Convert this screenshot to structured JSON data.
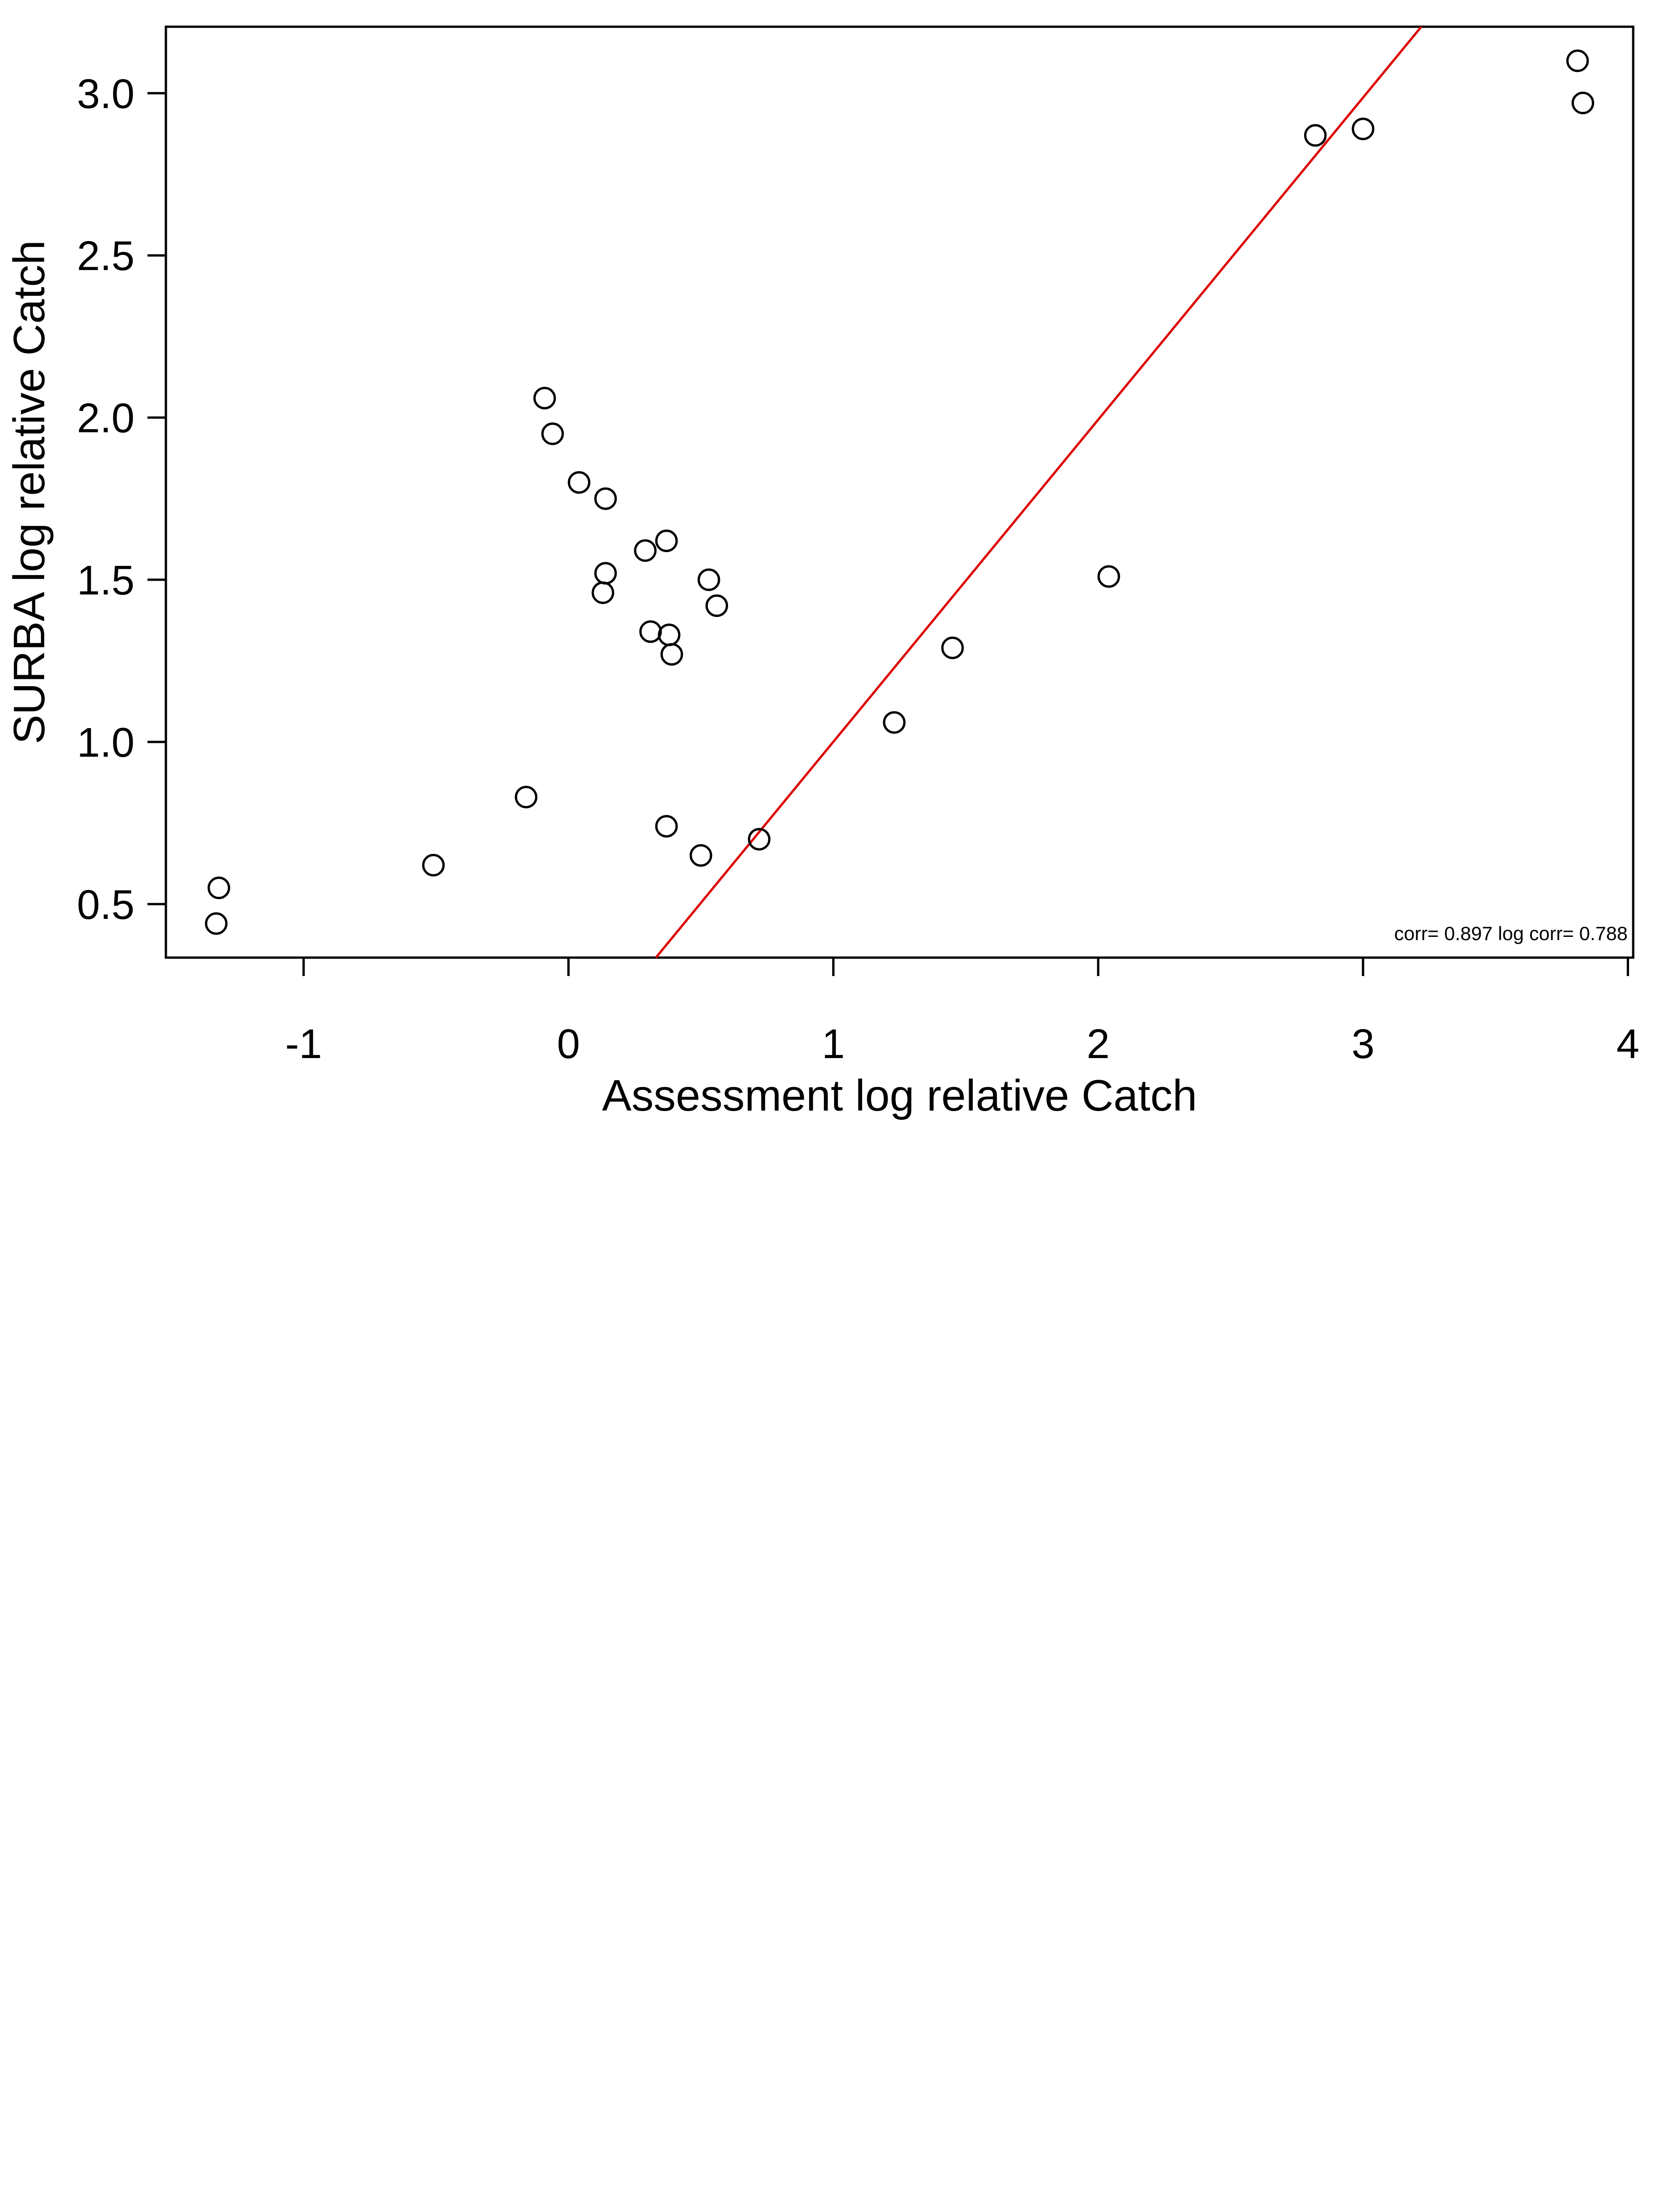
{
  "chart_data": {
    "type": "scatter",
    "title": "",
    "xlabel": "Assessment log relative Catch",
    "ylabel": "SURBA log relative Catch",
    "xlim": [
      -1.52,
      4.02
    ],
    "ylim": [
      0.335,
      3.205
    ],
    "xticks": [
      -1,
      0,
      1,
      2,
      3,
      4
    ],
    "xtick_labels": [
      "-1",
      "0",
      "1",
      "2",
      "3",
      "4"
    ],
    "yticks": [
      0.5,
      1.0,
      1.5,
      2.0,
      2.5,
      3.0
    ],
    "ytick_labels": [
      "0.5",
      "1.0",
      "1.5",
      "2.0",
      "2.5",
      "3.0"
    ],
    "grid": false,
    "series": [
      {
        "points": [
          {
            "x": -1.32,
            "y": 0.55
          },
          {
            "x": -1.33,
            "y": 0.44
          },
          {
            "x": -0.51,
            "y": 0.62
          },
          {
            "x": -0.16,
            "y": 0.83
          },
          {
            "x": -0.09,
            "y": 2.06
          },
          {
            "x": -0.06,
            "y": 1.95
          },
          {
            "x": 0.04,
            "y": 1.8
          },
          {
            "x": 0.14,
            "y": 1.75
          },
          {
            "x": 0.14,
            "y": 1.52
          },
          {
            "x": 0.13,
            "y": 1.46
          },
          {
            "x": 0.29,
            "y": 1.59
          },
          {
            "x": 0.37,
            "y": 1.62
          },
          {
            "x": 0.31,
            "y": 1.34
          },
          {
            "x": 0.38,
            "y": 1.33
          },
          {
            "x": 0.39,
            "y": 1.27
          },
          {
            "x": 0.53,
            "y": 1.5
          },
          {
            "x": 0.56,
            "y": 1.42
          },
          {
            "x": 0.37,
            "y": 0.74
          },
          {
            "x": 0.5,
            "y": 0.65
          },
          {
            "x": 0.72,
            "y": 0.7
          },
          {
            "x": 1.23,
            "y": 1.06
          },
          {
            "x": 1.45,
            "y": 1.29
          },
          {
            "x": 2.04,
            "y": 1.51
          },
          {
            "x": 2.82,
            "y": 2.87
          },
          {
            "x": 3.0,
            "y": 2.89
          },
          {
            "x": 3.81,
            "y": 3.1
          },
          {
            "x": 3.83,
            "y": 2.97
          }
        ],
        "marker": "open-circle",
        "color": "#000000"
      }
    ],
    "reference_line": {
      "points": [
        [
          0.33,
          0.335
        ],
        [
          3.22,
          3.205
        ]
      ],
      "color": "#dd0000"
    },
    "annotation": "corr= 0.897  log corr= 0.788"
  }
}
